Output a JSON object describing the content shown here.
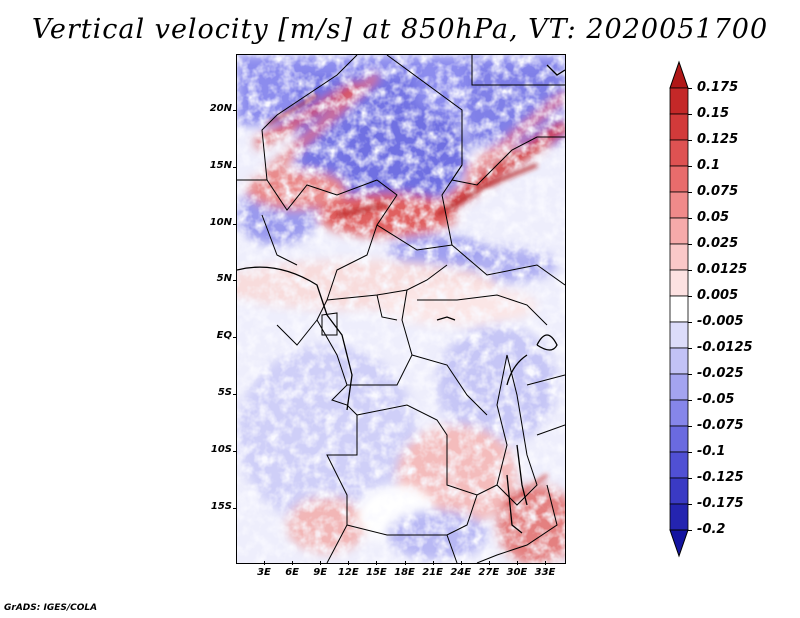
{
  "title": "Vertical velocity [m/s] at 850hPa, VT: 2020051700",
  "footer": "GrADS: IGES/COLA",
  "map": {
    "lat_labels": [
      "20N",
      "15N",
      "10N",
      "5N",
      "EQ",
      "5S",
      "10S",
      "15S"
    ],
    "lon_labels": [
      "3E",
      "6E",
      "9E",
      "12E",
      "15E",
      "18E",
      "21E",
      "24E",
      "27E",
      "30E",
      "33E"
    ]
  },
  "colorbar": {
    "labels": [
      "0.175",
      "0.15",
      "0.125",
      "0.1",
      "0.075",
      "0.05",
      "0.025",
      "0.0125",
      "0.005",
      "-0.005",
      "-0.0125",
      "-0.025",
      "-0.05",
      "-0.075",
      "-0.1",
      "-0.125",
      "-0.175",
      "-0.2"
    ],
    "colors": [
      "#b01818",
      "#c42828",
      "#d23a3a",
      "#de5252",
      "#e86c6c",
      "#f08a8a",
      "#f6aaaa",
      "#fac8c8",
      "#fde2e2",
      "#ffffff",
      "#dcdcfa",
      "#c2c2f6",
      "#a4a4f0",
      "#8686ea",
      "#6a6ae0",
      "#5050d4",
      "#3a3ac4",
      "#2424b0",
      "#1414a0"
    ]
  }
}
